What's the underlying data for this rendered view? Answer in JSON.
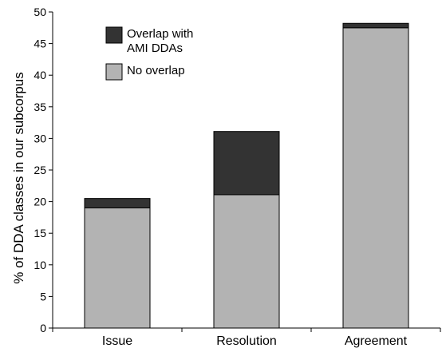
{
  "chart_data": {
    "type": "bar",
    "stacked": true,
    "categories": [
      "Issue",
      "Resolution",
      "Agreement"
    ],
    "series": [
      {
        "name": "No overlap",
        "values": [
          19.0,
          21.1,
          47.5
        ],
        "color": "#b3b3b3"
      },
      {
        "name": "Overlap with AMI DDAs",
        "values": [
          1.5,
          10.0,
          0.7
        ],
        "color": "#333333"
      }
    ],
    "legend_lines": [
      [
        "Overlap with",
        "AMI DDAs"
      ],
      [
        "No overlap"
      ]
    ],
    "legend_placement": "top-left",
    "title": "",
    "xlabel": "",
    "ylabel": "% of DDA classes in our subcorpus",
    "ylim": [
      0,
      50
    ],
    "yticks": [
      0,
      5,
      10,
      15,
      20,
      25,
      30,
      35,
      40,
      45,
      50
    ],
    "grid": false
  }
}
